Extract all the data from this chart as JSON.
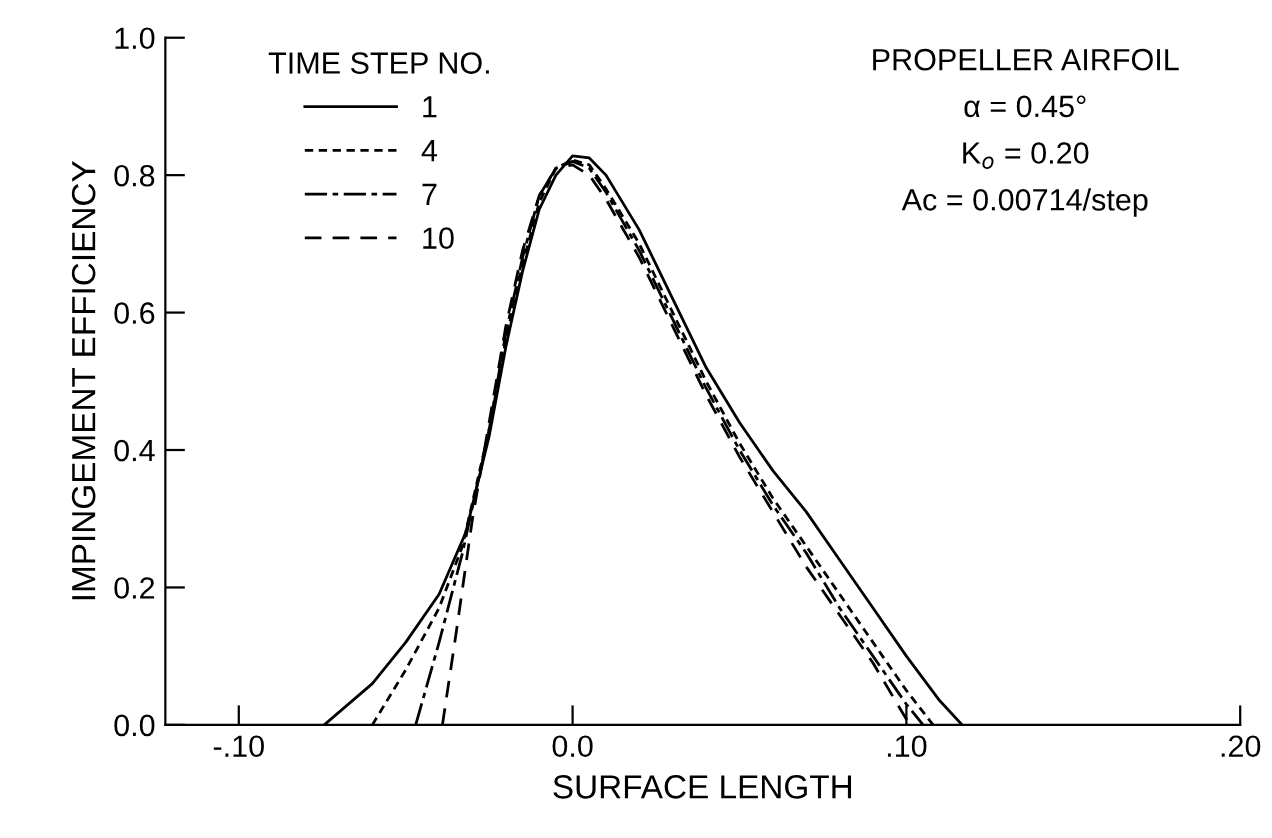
{
  "chart_data": {
    "type": "line",
    "xlabel": "SURFACE LENGTH",
    "ylabel": "IMPINGEMENT EFFICIENCY",
    "xlim": [
      -0.122,
      0.2
    ],
    "ylim": [
      0,
      1.0
    ],
    "xticks": [
      {
        "value": -0.1,
        "label": "-.10"
      },
      {
        "value": 0,
        "label": "0.0"
      },
      {
        "value": 0.1,
        "label": ".10"
      },
      {
        "value": 0.2,
        "label": ".20"
      }
    ],
    "yticks": [
      {
        "value": 0,
        "label": "0.0"
      },
      {
        "value": 0.2,
        "label": "0.2"
      },
      {
        "value": 0.4,
        "label": "0.4"
      },
      {
        "value": 0.6,
        "label": "0.6"
      },
      {
        "value": 0.8,
        "label": "0.8"
      },
      {
        "value": 1.0,
        "label": "1.0"
      }
    ],
    "grid": false,
    "legend": "top left",
    "legend_title": "TIME STEP NO.",
    "marker": "none",
    "annotations": [
      "PROPELLER AIRFOIL",
      "α = 0.45°",
      "K$_{o}$ = 0.20",
      "Ac = 0.00714/step"
    ],
    "series": [
      {
        "name": "1",
        "color": "#000000",
        "line_style": "solid",
        "x": [
          -0.0744,
          -0.06,
          -0.05,
          -0.04,
          -0.032,
          -0.025,
          -0.02,
          -0.015,
          -0.01,
          -0.005,
          0,
          0.005,
          0.01,
          0.02,
          0.03,
          0.04,
          0.05,
          0.06,
          0.07,
          0.08,
          0.09,
          0.1,
          0.11,
          0.1167
        ],
        "values": [
          0,
          0.06,
          0.12,
          0.19,
          0.28,
          0.42,
          0.55,
          0.66,
          0.75,
          0.8,
          0.828,
          0.825,
          0.8,
          0.72,
          0.62,
          0.52,
          0.44,
          0.37,
          0.31,
          0.24,
          0.17,
          0.1,
          0.035,
          0
        ]
      },
      {
        "name": "4",
        "color": "#000000",
        "line_style": "dashed",
        "x": [
          -0.06,
          -0.05,
          -0.04,
          -0.033,
          -0.025,
          -0.02,
          -0.015,
          -0.01,
          -0.005,
          0,
          0.005,
          0.01,
          0.02,
          0.03,
          0.04,
          0.05,
          0.06,
          0.07,
          0.08,
          0.09,
          0.1,
          0.108
        ],
        "values": [
          0,
          0.08,
          0.17,
          0.26,
          0.43,
          0.56,
          0.67,
          0.76,
          0.81,
          0.822,
          0.815,
          0.78,
          0.7,
          0.6,
          0.5,
          0.41,
          0.33,
          0.26,
          0.19,
          0.12,
          0.05,
          0
        ]
      },
      {
        "name": "7",
        "color": "#000000",
        "line_style": "dashed",
        "x": [
          -0.047,
          -0.04,
          -0.033,
          -0.025,
          -0.02,
          -0.015,
          -0.01,
          -0.005,
          0,
          0.005,
          0.01,
          0.02,
          0.03,
          0.04,
          0.05,
          0.06,
          0.07,
          0.08,
          0.09,
          0.1,
          0.105
        ],
        "values": [
          0,
          0.12,
          0.25,
          0.43,
          0.57,
          0.68,
          0.77,
          0.81,
          0.82,
          0.81,
          0.775,
          0.69,
          0.59,
          0.49,
          0.4,
          0.32,
          0.25,
          0.17,
          0.1,
          0.03,
          0
        ]
      },
      {
        "name": "10",
        "color": "#000000",
        "line_style": "dashed",
        "x": [
          -0.039,
          -0.035,
          -0.03,
          -0.025,
          -0.02,
          -0.015,
          -0.01,
          -0.005,
          0,
          0.005,
          0.01,
          0.02,
          0.03,
          0.04,
          0.05,
          0.06,
          0.07,
          0.08,
          0.09,
          0.101
        ],
        "values": [
          0,
          0.13,
          0.3,
          0.44,
          0.58,
          0.69,
          0.77,
          0.81,
          0.815,
          0.8,
          0.765,
          0.68,
          0.58,
          0.48,
          0.39,
          0.31,
          0.23,
          0.16,
          0.09,
          0
        ]
      }
    ]
  }
}
